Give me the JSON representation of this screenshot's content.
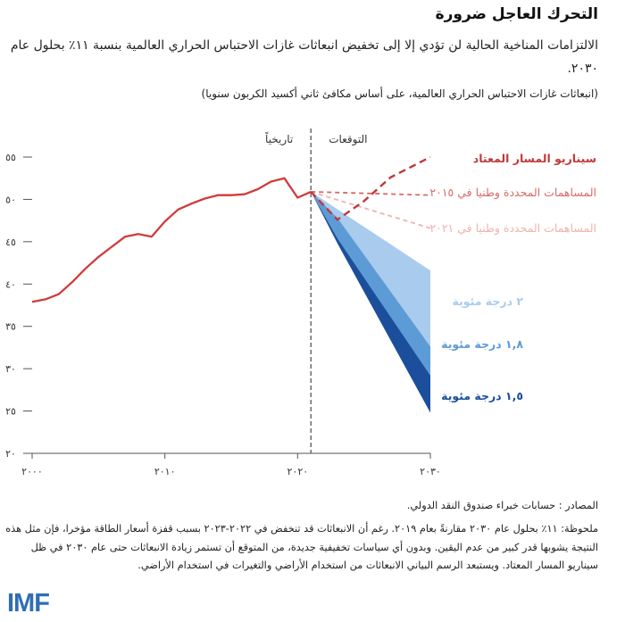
{
  "header": {
    "title": "التحرك العاجل ضرورة",
    "subtitle": "الالتزامات المناخية الحالية لن تؤدي إلا إلى تخفيض انبعاثات غازات الاحتباس الحراري العالمية بنسبة ١١٪ بحلول عام ٢٠٣٠.",
    "units": "(انبعاثات غازات الاحتباس الحراري العالمية، على أساس مكافئ ثاني أكسيد الكربون سنويا)"
  },
  "footer": {
    "source": "المصادر : حسابات خبراء صندوق النقد الدولي.",
    "note": "ملحوظة: ١١٪ بحلول عام ٢٠٣٠ مقارنةً بعام ٢٠١٩. رغم أن الانبعاثات قد تنخفض في ٢٠٢٢-٢٠٢٣ بسبب قفزة أسعار الطاقة مؤخرا، فإن مثل هذه النتيجة يشوبها قدر كبير من عدم اليقين. وبدون أي سياسات تخفيفية جديدة، من المتوقع أن تستمر زيادة الانبعاثات حتى عام ٢٠٣٠ في ظل سيناريو المسار المعتاد. ويستبعد الرسم البياني الانبعاثات من استخدام الأراضي والتغيرات في استخدام الأراضي.",
    "logo": "IMF"
  },
  "colors": {
    "historical": "#d13b3b",
    "bau": "#c0393b",
    "ndc2015": "#d96a66",
    "ndc2021": "#efb3ae",
    "band2": "#a9cbed",
    "band18": "#5d9bd6",
    "band15": "#1b4f9c",
    "axis": "#555555"
  },
  "chart_data": {
    "type": "line",
    "x_range": [
      2000,
      2030
    ],
    "y_range": [
      20,
      55
    ],
    "x_ticks": [
      2000,
      2010,
      2020,
      2030
    ],
    "x_tick_labels": [
      "٢٠٠٠",
      "٢٠١٠",
      "٢٠٢٠",
      "٢٠٣٠"
    ],
    "y_ticks": [
      20,
      25,
      30,
      35,
      40,
      45,
      50,
      55
    ],
    "y_tick_labels": [
      "٢٠",
      "٢٥",
      "٣٠",
      "٣٥",
      "٤٠",
      "٤٥",
      "٥٠",
      "٥٥"
    ],
    "divider_x": 2021,
    "region_labels": {
      "historical": "تاريخياً",
      "projections": "التوقعات"
    },
    "historical": {
      "x": [
        2000,
        2001,
        2002,
        2003,
        2004,
        2005,
        2006,
        2007,
        2008,
        2009,
        2010,
        2011,
        2012,
        2013,
        2014,
        2015,
        2016,
        2017,
        2018,
        2019,
        2020,
        2021
      ],
      "y": [
        37.9,
        38.2,
        38.8,
        40.2,
        41.8,
        43.2,
        44.4,
        45.6,
        45.9,
        45.6,
        47.4,
        48.8,
        49.5,
        50.1,
        50.5,
        50.5,
        50.6,
        51.2,
        52.1,
        52.5,
        50.2,
        50.9
      ]
    },
    "series": [
      {
        "name": "سيناريو المسار المعتاد",
        "x": [
          2021,
          2023,
          2025,
          2027,
          2030
        ],
        "y": [
          50.9,
          47.6,
          49.8,
          52.6,
          55.0
        ]
      },
      {
        "name": "المساهمات المحددة وطنيا في ٢٠١٥",
        "x": [
          2021,
          2030
        ],
        "y": [
          50.9,
          50.5
        ]
      },
      {
        "name": "المساهمات المحددة وطنيا في ٢٠٢١",
        "x": [
          2021,
          2030
        ],
        "y": [
          50.9,
          46.6
        ]
      }
    ],
    "bands": [
      {
        "name": "٢ درجة مئوية",
        "x": [
          2021,
          2030
        ],
        "upper": [
          50.9,
          41.6
        ],
        "lower": [
          50.9,
          32.6
        ]
      },
      {
        "name": "١,٨ درجة مئوية",
        "x": [
          2021,
          2023,
          2030
        ],
        "upper": [
          50.9,
          47.8,
          32.6
        ],
        "lower": [
          50.9,
          45.4,
          29.2
        ]
      },
      {
        "name": "١,٥ درجة مئوية",
        "x": [
          2021,
          2023,
          2030
        ],
        "upper": [
          50.9,
          45.4,
          29.2
        ],
        "lower": [
          50.9,
          44.8,
          24.8
        ]
      }
    ]
  }
}
